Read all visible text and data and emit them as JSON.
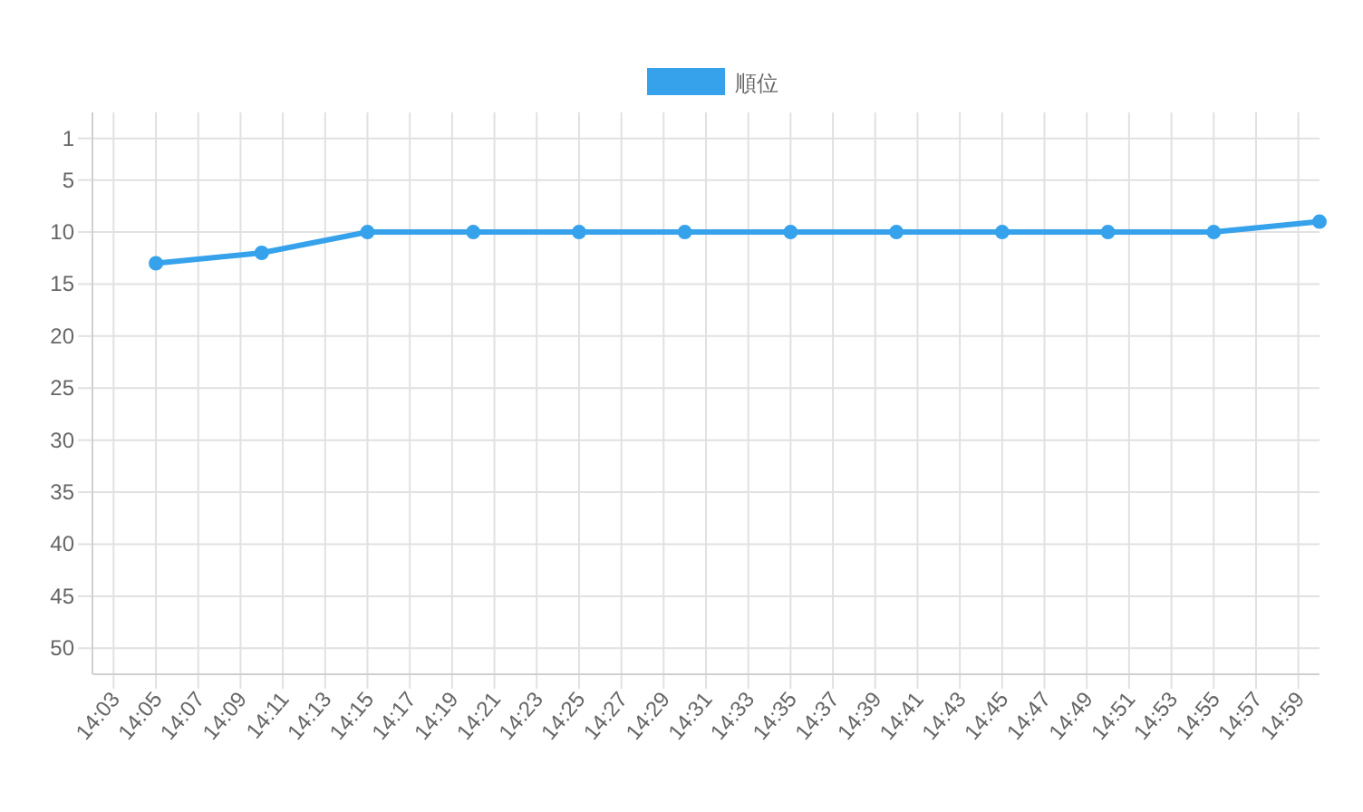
{
  "chart_data": {
    "type": "line",
    "x": [
      14.08333,
      14.16667,
      14.25,
      14.33333,
      14.41667,
      14.5,
      14.58333,
      14.66667,
      14.75,
      14.83333,
      14.91667,
      15.0
    ],
    "series": [
      {
        "name": "順位",
        "color": "#36a2eb",
        "values": [
          13,
          12,
          10,
          10,
          10,
          10,
          10,
          10,
          10,
          10,
          10,
          9
        ]
      }
    ],
    "xlim": [
      14.03333,
      15.0
    ],
    "ylim": [
      52.5,
      -1.5
    ],
    "xticks": [
      {
        "value": 14.05,
        "label": "14:03"
      },
      {
        "value": 14.08333,
        "label": "14:05"
      },
      {
        "value": 14.11667,
        "label": "14:07"
      },
      {
        "value": 14.15,
        "label": "14:09"
      },
      {
        "value": 14.18333,
        "label": "14:11"
      },
      {
        "value": 14.21667,
        "label": "14:13"
      },
      {
        "value": 14.25,
        "label": "14:15"
      },
      {
        "value": 14.28333,
        "label": "14:17"
      },
      {
        "value": 14.31667,
        "label": "14:19"
      },
      {
        "value": 14.35,
        "label": "14:21"
      },
      {
        "value": 14.38333,
        "label": "14:23"
      },
      {
        "value": 14.41667,
        "label": "14:25"
      },
      {
        "value": 14.45,
        "label": "14:27"
      },
      {
        "value": 14.48333,
        "label": "14:29"
      },
      {
        "value": 14.51667,
        "label": "14:31"
      },
      {
        "value": 14.55,
        "label": "14:33"
      },
      {
        "value": 14.58333,
        "label": "14:35"
      },
      {
        "value": 14.61667,
        "label": "14:37"
      },
      {
        "value": 14.65,
        "label": "14:39"
      },
      {
        "value": 14.68333,
        "label": "14:41"
      },
      {
        "value": 14.71667,
        "label": "14:43"
      },
      {
        "value": 14.75,
        "label": "14:45"
      },
      {
        "value": 14.78333,
        "label": "14:47"
      },
      {
        "value": 14.81667,
        "label": "14:49"
      },
      {
        "value": 14.85,
        "label": "14:51"
      },
      {
        "value": 14.88333,
        "label": "14:53"
      },
      {
        "value": 14.91667,
        "label": "14:55"
      },
      {
        "value": 14.95,
        "label": "14:57"
      },
      {
        "value": 14.98333,
        "label": "14:59"
      }
    ],
    "yticks": [
      1,
      5,
      10,
      15,
      20,
      25,
      30,
      35,
      40,
      45,
      50
    ],
    "grid": true,
    "legend": "top",
    "marker": "circle",
    "line_style": "solid"
  }
}
